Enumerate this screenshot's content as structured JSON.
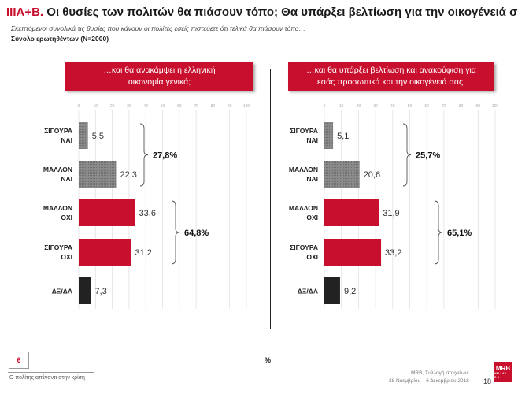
{
  "header": {
    "section": "ΙΙΙΑ+Β.",
    "title": "Οι θυσίες των πολιτών θα πιάσουν τόπο; Θα υπάρξει βελτίωση για την οικογένειά σας;",
    "subtitle": "Σκεπτόμενοι  συνολικά τις θυσίες που κάνουν οι πολίτες εσείς  πιστεύετε ότι τελικά θα πιάσουν τόπο…",
    "sample": "Σύνολο ερωτηθέντων (Ν=2000)"
  },
  "colors": {
    "accent": "#c8102e",
    "gray": "#8c8c8c",
    "dark": "#222222"
  },
  "chart_data": [
    {
      "type": "bar",
      "orientation": "horizontal",
      "title_lines": [
        "…και θα ανακάμψει η ελληνική",
        "οικονομία γενικά;"
      ],
      "categories": [
        [
          "ΣΙΓΟΥΡΑ",
          "ΝΑΙ"
        ],
        [
          "ΜΑΛΛΟΝ",
          "ΝΑΙ"
        ],
        [
          "ΜΑΛΛΟΝ",
          "ΟΧΙ"
        ],
        [
          "ΣΙΓΟΥΡΑ",
          "ΟΧΙ"
        ],
        [
          "ΔΞ/ΔΑ"
        ]
      ],
      "values": [
        5.5,
        22.3,
        33.6,
        31.2,
        7.3
      ],
      "value_labels": [
        "5,5",
        "22,3",
        "33,6",
        "31,2",
        "7,3"
      ],
      "bar_colors": [
        "#8c8c8c",
        "#8c8c8c",
        "#c8102e",
        "#c8102e",
        "#222222"
      ],
      "xlim": [
        0,
        100
      ],
      "xticks": [
        0,
        10,
        20,
        30,
        40,
        50,
        60,
        70,
        80,
        90,
        100
      ],
      "grid": true,
      "groups": [
        {
          "label": "27,8%",
          "from": 0,
          "to": 1
        },
        {
          "label": "64,8%",
          "from": 2,
          "to": 3
        }
      ]
    },
    {
      "type": "bar",
      "orientation": "horizontal",
      "title_lines": [
        "…και θα υπάρξει βελτίωση και ανακούφιση για",
        "εσάς προσωπικά και την οικογένειά σας;"
      ],
      "categories": [
        [
          "ΣΙΓΟΥΡΑ",
          "ΝΑΙ"
        ],
        [
          "ΜΑΛΛΟΝ",
          "ΝΑΙ"
        ],
        [
          "ΜΑΛΛΟΝ",
          "ΟΧΙ"
        ],
        [
          "ΣΙΓΟΥΡΑ",
          "ΟΧΙ"
        ],
        [
          "ΔΞ/ΔΑ"
        ]
      ],
      "values": [
        5.1,
        20.6,
        31.9,
        33.2,
        9.2
      ],
      "value_labels": [
        "5,1",
        "20,6",
        "31,9",
        "33,2",
        "9,2"
      ],
      "bar_colors": [
        "#8c8c8c",
        "#8c8c8c",
        "#c8102e",
        "#c8102e",
        "#222222"
      ],
      "xlim": [
        0,
        100
      ],
      "xticks": [
        0,
        10,
        20,
        30,
        40,
        50,
        60,
        70,
        80,
        90,
        100
      ],
      "grid": true,
      "groups": [
        {
          "label": "25,7%",
          "from": 0,
          "to": 1
        },
        {
          "label": "65,1%",
          "from": 2,
          "to": 3
        }
      ]
    }
  ],
  "footer": {
    "slide_number": "6",
    "topic": "Ο πολίτης απέναντι στην κρίση",
    "unit": "%",
    "source_line1": "MRB, Συλλογή στοιχείων:",
    "source_line2": "28 Νοεμβρίου – 6 Δεκεμβρίου 2018",
    "page": "18",
    "logo_main": "MRB",
    "logo_sub": "HELLAS S.A."
  }
}
